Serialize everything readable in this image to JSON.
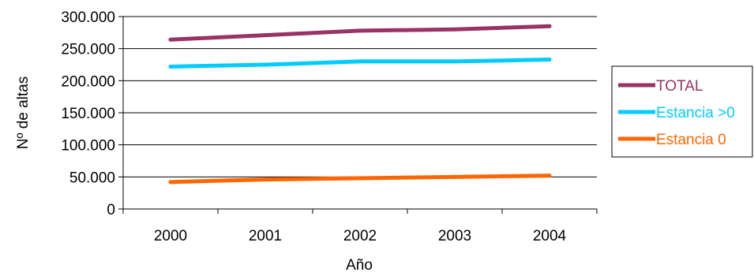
{
  "chart_data": {
    "type": "line",
    "title": "",
    "xlabel": "Año",
    "ylabel": "Nº de altas",
    "categories": [
      "2000",
      "2001",
      "2002",
      "2003",
      "2004"
    ],
    "ylim": [
      0,
      300000
    ],
    "yticks": [
      0,
      50000,
      100000,
      150000,
      200000,
      250000,
      300000
    ],
    "ytick_labels": [
      "0",
      "50.000",
      "100.000",
      "150.000",
      "200.000",
      "250.000",
      "300.000"
    ],
    "grid": true,
    "legend_position": "right",
    "series": [
      {
        "name": "TOTAL",
        "color": "#993366",
        "values": [
          264000,
          271000,
          278000,
          280000,
          285000
        ]
      },
      {
        "name": "Estancia >0",
        "color": "#00ccff",
        "values": [
          222000,
          225000,
          230000,
          230000,
          233000
        ]
      },
      {
        "name": "Estancia 0",
        "color": "#ff6600",
        "values": [
          42000,
          46000,
          48000,
          50000,
          52000
        ]
      }
    ]
  }
}
